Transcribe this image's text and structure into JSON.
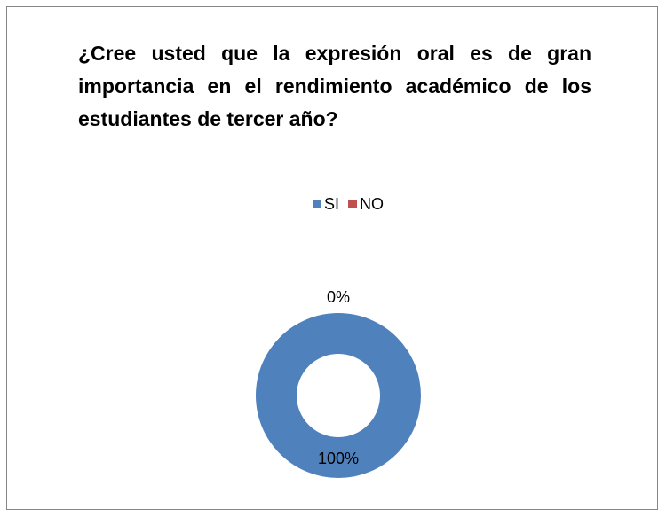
{
  "chart_data": {
    "type": "donut",
    "title": "¿Cree usted que la expresión oral es de gran importancia en el rendimiento académico de los estudiantes de tercer año?",
    "categories": [
      "SI",
      "NO"
    ],
    "values": [
      100,
      0
    ],
    "value_labels": [
      "100%",
      "0%"
    ],
    "colors": [
      "#4f81bd",
      "#c0504d"
    ],
    "legend": "top"
  }
}
